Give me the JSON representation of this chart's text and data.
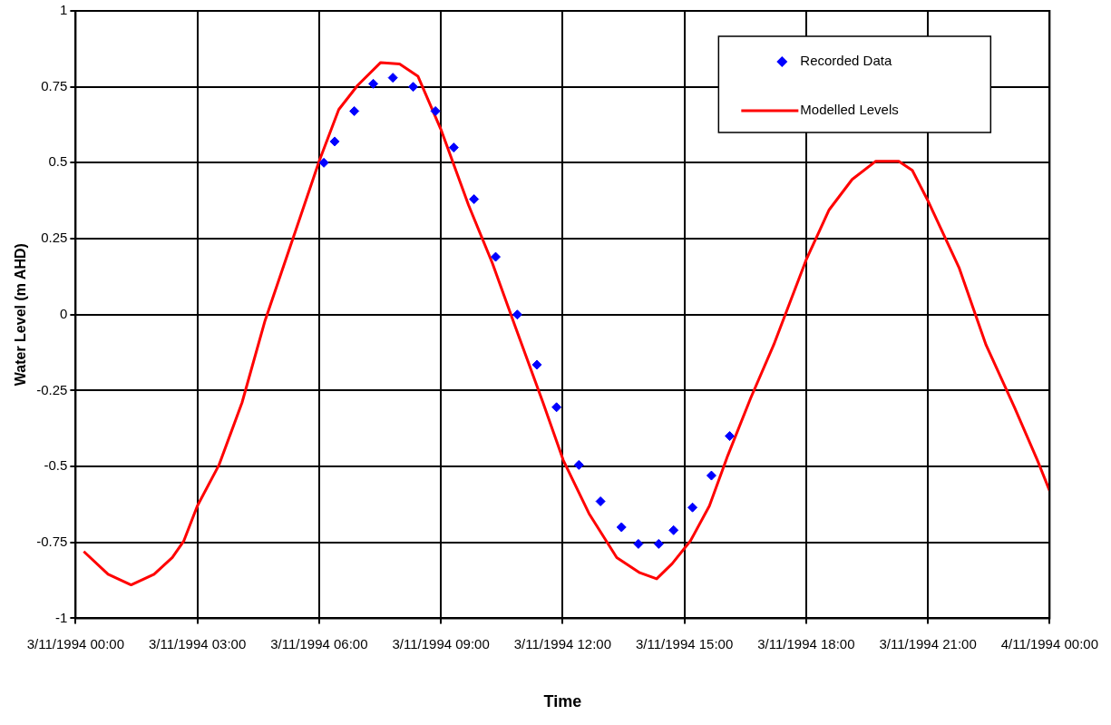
{
  "chart_data": {
    "type": "scatter",
    "xlabel": "Time",
    "ylabel": "Water Level (m AHD)",
    "xlim": [
      "1994-11-03T00:00",
      "1994-11-04T00:00"
    ],
    "xticks": [
      {
        "value": "1994-11-03T00:00",
        "label": "3/11/1994 00:00"
      },
      {
        "value": "1994-11-03T03:00",
        "label": "3/11/1994 03:00"
      },
      {
        "value": "1994-11-03T06:00",
        "label": "3/11/1994 06:00"
      },
      {
        "value": "1994-11-03T09:00",
        "label": "3/11/1994 09:00"
      },
      {
        "value": "1994-11-03T12:00",
        "label": "3/11/1994 12:00"
      },
      {
        "value": "1994-11-03T15:00",
        "label": "3/11/1994 15:00"
      },
      {
        "value": "1994-11-03T18:00",
        "label": "3/11/1994 18:00"
      },
      {
        "value": "1994-11-03T21:00",
        "label": "3/11/1994 21:00"
      },
      {
        "value": "1994-11-04T00:00",
        "label": "4/11/1994 00:00"
      }
    ],
    "ylim": [
      -1,
      1
    ],
    "yticks": [
      -1,
      -0.75,
      -0.5,
      -0.25,
      0,
      0.25,
      0.5,
      0.75,
      1
    ],
    "grid": true,
    "legend": "top right",
    "series": [
      {
        "name": "Recorded Data",
        "marker": "diamond",
        "color": "#0000ff",
        "x": [
          "1994-11-03T06:07",
          "1994-11-03T06:23",
          "1994-11-03T06:52",
          "1994-11-03T07:20",
          "1994-11-03T07:49",
          "1994-11-03T08:19",
          "1994-11-03T08:52",
          "1994-11-03T09:19",
          "1994-11-03T09:49",
          "1994-11-03T10:21",
          "1994-11-03T10:53",
          "1994-11-03T11:22",
          "1994-11-03T11:51",
          "1994-11-03T12:24",
          "1994-11-03T12:56",
          "1994-11-03T13:27",
          "1994-11-03T13:52",
          "1994-11-03T14:22",
          "1994-11-03T14:44",
          "1994-11-03T15:12",
          "1994-11-03T15:40",
          "1994-11-03T16:07"
        ],
        "values": [
          0.5,
          0.57,
          0.67,
          0.76,
          0.78,
          0.75,
          0.67,
          0.55,
          0.38,
          0.19,
          0,
          -0.165,
          -0.305,
          -0.495,
          -0.615,
          -0.7,
          -0.755,
          -0.755,
          -0.71,
          -0.635,
          -0.53,
          -0.4
        ]
      },
      {
        "name": "Modelled Levels",
        "type": "line",
        "marker": "none",
        "line_style": "solid",
        "color": "#ff0000",
        "x": [
          "1994-11-03T00:12",
          "1994-11-03T00:48",
          "1994-11-03T01:22",
          "1994-11-03T01:56",
          "1994-11-03T02:23",
          "1994-11-03T02:40",
          "1994-11-03T03:00",
          "1994-11-03T03:32",
          "1994-11-03T04:06",
          "1994-11-03T04:40",
          "1994-11-03T05:22",
          "1994-11-03T06:00",
          "1994-11-03T06:29",
          "1994-11-03T06:57",
          "1994-11-03T07:31",
          "1994-11-03T07:59",
          "1994-11-03T08:26",
          "1994-11-03T09:00",
          "1994-11-03T09:41",
          "1994-11-03T10:16",
          "1994-11-03T10:50",
          "1994-11-03T11:31",
          "1994-11-03T12:01",
          "1994-11-03T12:39",
          "1994-11-03T13:20",
          "1994-11-03T13:54",
          "1994-11-03T14:19",
          "1994-11-03T14:42",
          "1994-11-03T15:09",
          "1994-11-03T15:37",
          "1994-11-03T16:04",
          "1994-11-03T16:38",
          "1994-11-03T17:12",
          "1994-11-03T18:00",
          "1994-11-03T18:34",
          "1994-11-03T19:08",
          "1994-11-03T19:43",
          "1994-11-03T20:17",
          "1994-11-03T20:37",
          "1994-11-03T21:00",
          "1994-11-03T21:46",
          "1994-11-03T22:26",
          "1994-11-03T23:08",
          "1994-11-03T23:42",
          "1994-11-04T00:00"
        ],
        "values": [
          -0.78,
          -0.855,
          -0.89,
          -0.855,
          -0.8,
          -0.745,
          -0.63,
          -0.495,
          -0.29,
          -0.02,
          0.255,
          0.505,
          0.675,
          0.755,
          0.83,
          0.825,
          0.785,
          0.61,
          0.36,
          0.17,
          -0.04,
          -0.29,
          -0.48,
          -0.655,
          -0.8,
          -0.85,
          -0.87,
          -0.82,
          -0.745,
          -0.63,
          -0.465,
          -0.275,
          -0.1,
          0.18,
          0.345,
          0.445,
          0.505,
          0.505,
          0.475,
          0.375,
          0.155,
          -0.1,
          -0.305,
          -0.48,
          -0.58
        ]
      }
    ]
  }
}
